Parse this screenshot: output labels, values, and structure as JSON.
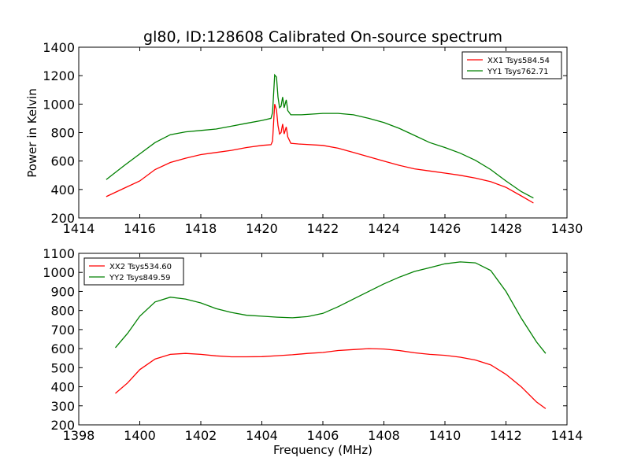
{
  "figure": {
    "title": "gl80, ID:128608 Calibrated On-source spectrum",
    "xlabel": "Frequency (MHz)",
    "ylabel": "Power in Kelvin"
  },
  "chart_data": [
    {
      "type": "line",
      "title": "gl80, ID:128608 Calibrated On-source spectrum",
      "xlabel": "",
      "ylabel": "Power in Kelvin",
      "xlim": [
        1414,
        1430
      ],
      "ylim": [
        200,
        1400
      ],
      "xticks": [
        1414,
        1416,
        1418,
        1420,
        1422,
        1424,
        1426,
        1428,
        1430
      ],
      "yticks": [
        200,
        400,
        600,
        800,
        1000,
        1200,
        1400
      ],
      "legend_position": "top-right",
      "series": [
        {
          "name": "XX1 Tsys584.54",
          "color": "#ff0000",
          "points": [
            [
              1414.9,
              350
            ],
            [
              1415.5,
              410
            ],
            [
              1416,
              460
            ],
            [
              1416.5,
              540
            ],
            [
              1417,
              590
            ],
            [
              1417.5,
              620
            ],
            [
              1418,
              645
            ],
            [
              1418.5,
              660
            ],
            [
              1419,
              675
            ],
            [
              1419.5,
              695
            ],
            [
              1420,
              710
            ],
            [
              1420.3,
              715
            ],
            [
              1420.35,
              740
            ],
            [
              1420.42,
              1000
            ],
            [
              1420.48,
              960
            ],
            [
              1420.53,
              850
            ],
            [
              1420.58,
              790
            ],
            [
              1420.63,
              800
            ],
            [
              1420.68,
              860
            ],
            [
              1420.73,
              790
            ],
            [
              1420.8,
              840
            ],
            [
              1420.85,
              770
            ],
            [
              1420.95,
              725
            ],
            [
              1421.2,
              720
            ],
            [
              1422,
              710
            ],
            [
              1422.5,
              690
            ],
            [
              1423,
              660
            ],
            [
              1423.5,
              630
            ],
            [
              1424,
              600
            ],
            [
              1424.5,
              570
            ],
            [
              1425,
              545
            ],
            [
              1425.5,
              530
            ],
            [
              1426,
              515
            ],
            [
              1426.5,
              500
            ],
            [
              1427,
              480
            ],
            [
              1427.5,
              455
            ],
            [
              1428,
              415
            ],
            [
              1428.5,
              355
            ],
            [
              1428.9,
              305
            ]
          ]
        },
        {
          "name": "YY1 Tsys762.71",
          "color": "#008000",
          "points": [
            [
              1414.9,
              470
            ],
            [
              1415.5,
              570
            ],
            [
              1416,
              650
            ],
            [
              1416.5,
              730
            ],
            [
              1417,
              785
            ],
            [
              1417.5,
              805
            ],
            [
              1418,
              815
            ],
            [
              1418.5,
              825
            ],
            [
              1419,
              845
            ],
            [
              1419.5,
              865
            ],
            [
              1420,
              885
            ],
            [
              1420.3,
              900
            ],
            [
              1420.35,
              940
            ],
            [
              1420.42,
              1205
            ],
            [
              1420.48,
              1190
            ],
            [
              1420.53,
              1050
            ],
            [
              1420.58,
              975
            ],
            [
              1420.63,
              985
            ],
            [
              1420.68,
              1050
            ],
            [
              1420.73,
              975
            ],
            [
              1420.8,
              1030
            ],
            [
              1420.85,
              955
            ],
            [
              1420.95,
              925
            ],
            [
              1421.3,
              925
            ],
            [
              1422,
              935
            ],
            [
              1422.5,
              935
            ],
            [
              1423,
              925
            ],
            [
              1423.5,
              900
            ],
            [
              1424,
              870
            ],
            [
              1424.5,
              830
            ],
            [
              1425,
              780
            ],
            [
              1425.5,
              730
            ],
            [
              1426,
              695
            ],
            [
              1426.5,
              655
            ],
            [
              1427,
              605
            ],
            [
              1427.5,
              540
            ],
            [
              1428,
              460
            ],
            [
              1428.5,
              385
            ],
            [
              1428.9,
              340
            ]
          ]
        }
      ]
    },
    {
      "type": "line",
      "title": "",
      "xlabel": "Frequency (MHz)",
      "ylabel": "",
      "xlim": [
        1398,
        1414
      ],
      "ylim": [
        200,
        1100
      ],
      "xticks": [
        1398,
        1400,
        1402,
        1404,
        1406,
        1408,
        1410,
        1412,
        1414
      ],
      "yticks": [
        200,
        300,
        400,
        500,
        600,
        700,
        800,
        900,
        1000,
        1100
      ],
      "legend_position": "top-left",
      "series": [
        {
          "name": "XX2 Tsys534.60",
          "color": "#ff0000",
          "points": [
            [
              1399.2,
              365
            ],
            [
              1399.6,
              420
            ],
            [
              1400,
              490
            ],
            [
              1400.5,
              545
            ],
            [
              1401,
              570
            ],
            [
              1401.5,
              575
            ],
            [
              1402,
              570
            ],
            [
              1402.5,
              562
            ],
            [
              1403,
              557
            ],
            [
              1403.5,
              557
            ],
            [
              1404,
              558
            ],
            [
              1404.5,
              563
            ],
            [
              1405,
              568
            ],
            [
              1405.5,
              575
            ],
            [
              1406,
              580
            ],
            [
              1406.5,
              590
            ],
            [
              1407,
              595
            ],
            [
              1407.5,
              600
            ],
            [
              1408,
              598
            ],
            [
              1408.5,
              590
            ],
            [
              1409,
              578
            ],
            [
              1409.5,
              570
            ],
            [
              1410,
              565
            ],
            [
              1410.5,
              555
            ],
            [
              1411,
              540
            ],
            [
              1411.5,
              515
            ],
            [
              1412,
              465
            ],
            [
              1412.5,
              400
            ],
            [
              1413,
              320
            ],
            [
              1413.3,
              285
            ]
          ]
        },
        {
          "name": "YY2 Tsys849.59",
          "color": "#008000",
          "points": [
            [
              1399.2,
              605
            ],
            [
              1399.6,
              680
            ],
            [
              1400,
              770
            ],
            [
              1400.5,
              845
            ],
            [
              1401,
              870
            ],
            [
              1401.5,
              860
            ],
            [
              1402,
              840
            ],
            [
              1402.5,
              810
            ],
            [
              1403,
              790
            ],
            [
              1403.5,
              775
            ],
            [
              1404,
              770
            ],
            [
              1404.5,
              765
            ],
            [
              1405,
              762
            ],
            [
              1405.5,
              768
            ],
            [
              1406,
              785
            ],
            [
              1406.5,
              820
            ],
            [
              1407,
              860
            ],
            [
              1407.5,
              900
            ],
            [
              1408,
              940
            ],
            [
              1408.5,
              975
            ],
            [
              1409,
              1005
            ],
            [
              1409.5,
              1025
            ],
            [
              1410,
              1045
            ],
            [
              1410.5,
              1055
            ],
            [
              1411,
              1050
            ],
            [
              1411.5,
              1010
            ],
            [
              1412,
              900
            ],
            [
              1412.5,
              760
            ],
            [
              1413,
              635
            ],
            [
              1413.3,
              575
            ]
          ]
        }
      ]
    }
  ]
}
